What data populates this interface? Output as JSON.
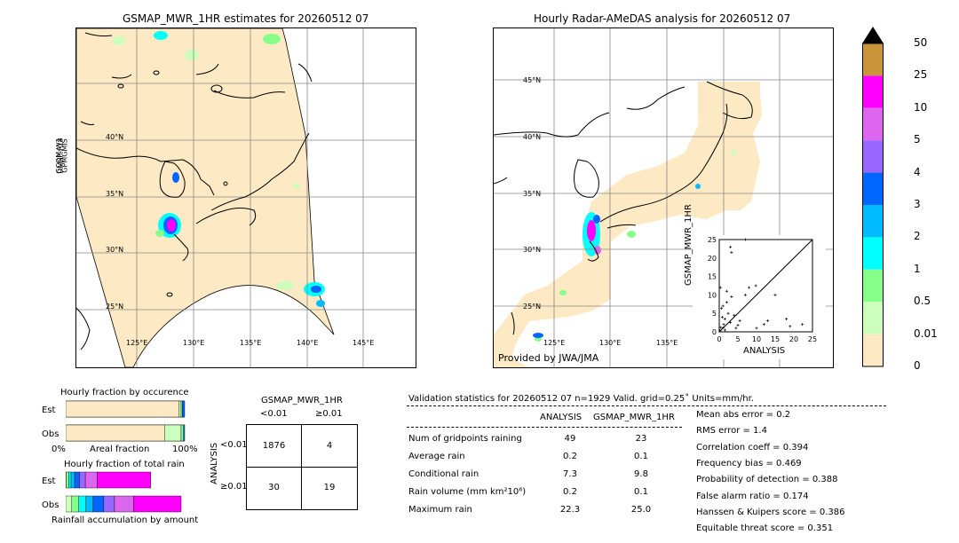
{
  "left_map": {
    "title": "GSMAP_MWR_1HR estimates for 20260512 07",
    "side_label_1": "GCOM-W1",
    "side_label_2": "DMSP-F18",
    "side_label_3": "GPMGMIS",
    "lat_labels": [
      "40°N",
      "35°N",
      "30°N",
      "25°N"
    ],
    "lon_labels": [
      "125°E",
      "130°E",
      "135°E",
      "140°E",
      "145°E"
    ]
  },
  "right_map": {
    "title": "Hourly Radar-AMeDAS analysis for 20260512 07",
    "lat_labels": [
      "45°N",
      "40°N",
      "35°N",
      "30°N",
      "25°N"
    ],
    "lon_labels": [
      "125°E",
      "130°E",
      "135°E"
    ],
    "credit": "Provided by JWA/JMA"
  },
  "colorbar": {
    "ticks": [
      "50",
      "25",
      "10",
      "5",
      "4",
      "3",
      "2",
      "1",
      "0.5",
      "0.01",
      "0"
    ],
    "colors": [
      "#c89638",
      "#ff00ff",
      "#dd66ee",
      "#9966ff",
      "#0066ff",
      "#00bbff",
      "#00ffff",
      "#88ff88",
      "#ccffbb",
      "#fde9c3"
    ],
    "over_color": "#000000"
  },
  "chart_data": [
    {
      "type": "scatter",
      "title": "",
      "xlabel": "ANALYSIS",
      "ylabel": "GSMAP_MWR_1HR",
      "xlim": [
        0,
        25
      ],
      "ylim": [
        0,
        25
      ],
      "x_ticks": [
        "0",
        "5",
        "10",
        "15",
        "20",
        "25"
      ],
      "y_ticks": [
        "0",
        "5",
        "10",
        "15",
        "20",
        "25"
      ],
      "points": [
        [
          0.2,
          0.3
        ],
        [
          0.4,
          1.2
        ],
        [
          0.6,
          6.4
        ],
        [
          1.0,
          1.1
        ],
        [
          1.2,
          2.0
        ],
        [
          1.5,
          3.5
        ],
        [
          1.0,
          7.0
        ],
        [
          2.0,
          8.0
        ],
        [
          2.4,
          5.0
        ],
        [
          3.0,
          2.5
        ],
        [
          3.3,
          9.5
        ],
        [
          4.0,
          4.5
        ],
        [
          4.5,
          1.0
        ],
        [
          5.5,
          3.0
        ],
        [
          7.0,
          10.0
        ],
        [
          8.0,
          12.0
        ],
        [
          9.8,
          12.5
        ],
        [
          10.0,
          1.0
        ],
        [
          12.0,
          2.0
        ],
        [
          15.0,
          10.0
        ],
        [
          18.0,
          3.5
        ],
        [
          19.0,
          1.5
        ],
        [
          22.3,
          2.0
        ],
        [
          3.0,
          23.0
        ],
        [
          3.3,
          21.5
        ],
        [
          7.0,
          25.0
        ],
        [
          0.3,
          12.0
        ],
        [
          0.8,
          4.0
        ],
        [
          1.5,
          0.5
        ],
        [
          2.0,
          11.0
        ],
        [
          5.0,
          1.8
        ],
        [
          13.0,
          3.0
        ]
      ]
    },
    {
      "type": "bar",
      "title": "Hourly fraction by occurence",
      "categories": [
        "Est",
        "Obs"
      ],
      "xlabel": "Areal fraction",
      "x_ticks": [
        "0%",
        "100%"
      ],
      "series": [
        {
          "values": [
            0.95,
            0.83
          ],
          "color": "#fde9c3"
        },
        {
          "values": [
            0.02,
            0.14
          ],
          "color": "#ccffbb"
        },
        {
          "values": [
            0.01,
            0.02
          ],
          "color": "#88ff88"
        },
        {
          "values": [
            0.02,
            0.01
          ],
          "color": "#0066ff"
        }
      ]
    },
    {
      "type": "bar",
      "title": "Hourly fraction of total rain",
      "categories": [
        "Est",
        "Obs"
      ],
      "xlabel": "Rainfall accumulation by amount",
      "series": [
        {
          "values": [
            0.005,
            0.05
          ],
          "color": "#ccffbb"
        },
        {
          "values": [
            0.02,
            0.06
          ],
          "color": "#88ff88"
        },
        {
          "values": [
            0.02,
            0.06
          ],
          "color": "#00ffff"
        },
        {
          "values": [
            0.03,
            0.06
          ],
          "color": "#00bbff"
        },
        {
          "values": [
            0.04,
            0.09
          ],
          "color": "#0066ff"
        },
        {
          "values": [
            0.05,
            0.09
          ],
          "color": "#9966ff"
        },
        {
          "values": [
            0.1,
            0.16
          ],
          "color": "#dd66ee"
        },
        {
          "values": [
            0.45,
            0.4
          ],
          "color": "#ff00ff"
        }
      ]
    }
  ],
  "contingency": {
    "title": "GSMAP_MWR_1HR",
    "col_labels": [
      "<0.01",
      "≥0.01"
    ],
    "row_axis": "ANALYSIS",
    "row_labels": [
      "<0.01",
      "≥0.01"
    ],
    "cells": [
      [
        "1876",
        "4"
      ],
      [
        "30",
        "19"
      ]
    ]
  },
  "validation": {
    "header": "Validation statistics for 20260512 07  n=1929 Valid. grid=0.25˚ Units=mm/hr.",
    "col_analysis": "ANALYSIS",
    "col_gsmap": "GSMAP_MWR_1HR",
    "rows": [
      {
        "label": "Num of gridpoints raining",
        "a": "49",
        "g": "23"
      },
      {
        "label": "Average rain",
        "a": "0.2",
        "g": "0.1"
      },
      {
        "label": "Conditional rain",
        "a": "7.3",
        "g": "9.8"
      },
      {
        "label": "Rain volume (mm km²10⁶)",
        "a": "0.2",
        "g": "0.1"
      },
      {
        "label": "Maximum rain",
        "a": "22.3",
        "g": "25.0"
      }
    ],
    "scores": [
      "Mean abs error =    0.2",
      "RMS error =    1.4",
      "Correlation coeff =  0.394",
      "Frequency bias =  0.469",
      "Probability of detection =  0.388",
      "False alarm ratio =  0.174",
      "Hanssen & Kuipers score =  0.386",
      "Equitable threat score =  0.351"
    ]
  }
}
